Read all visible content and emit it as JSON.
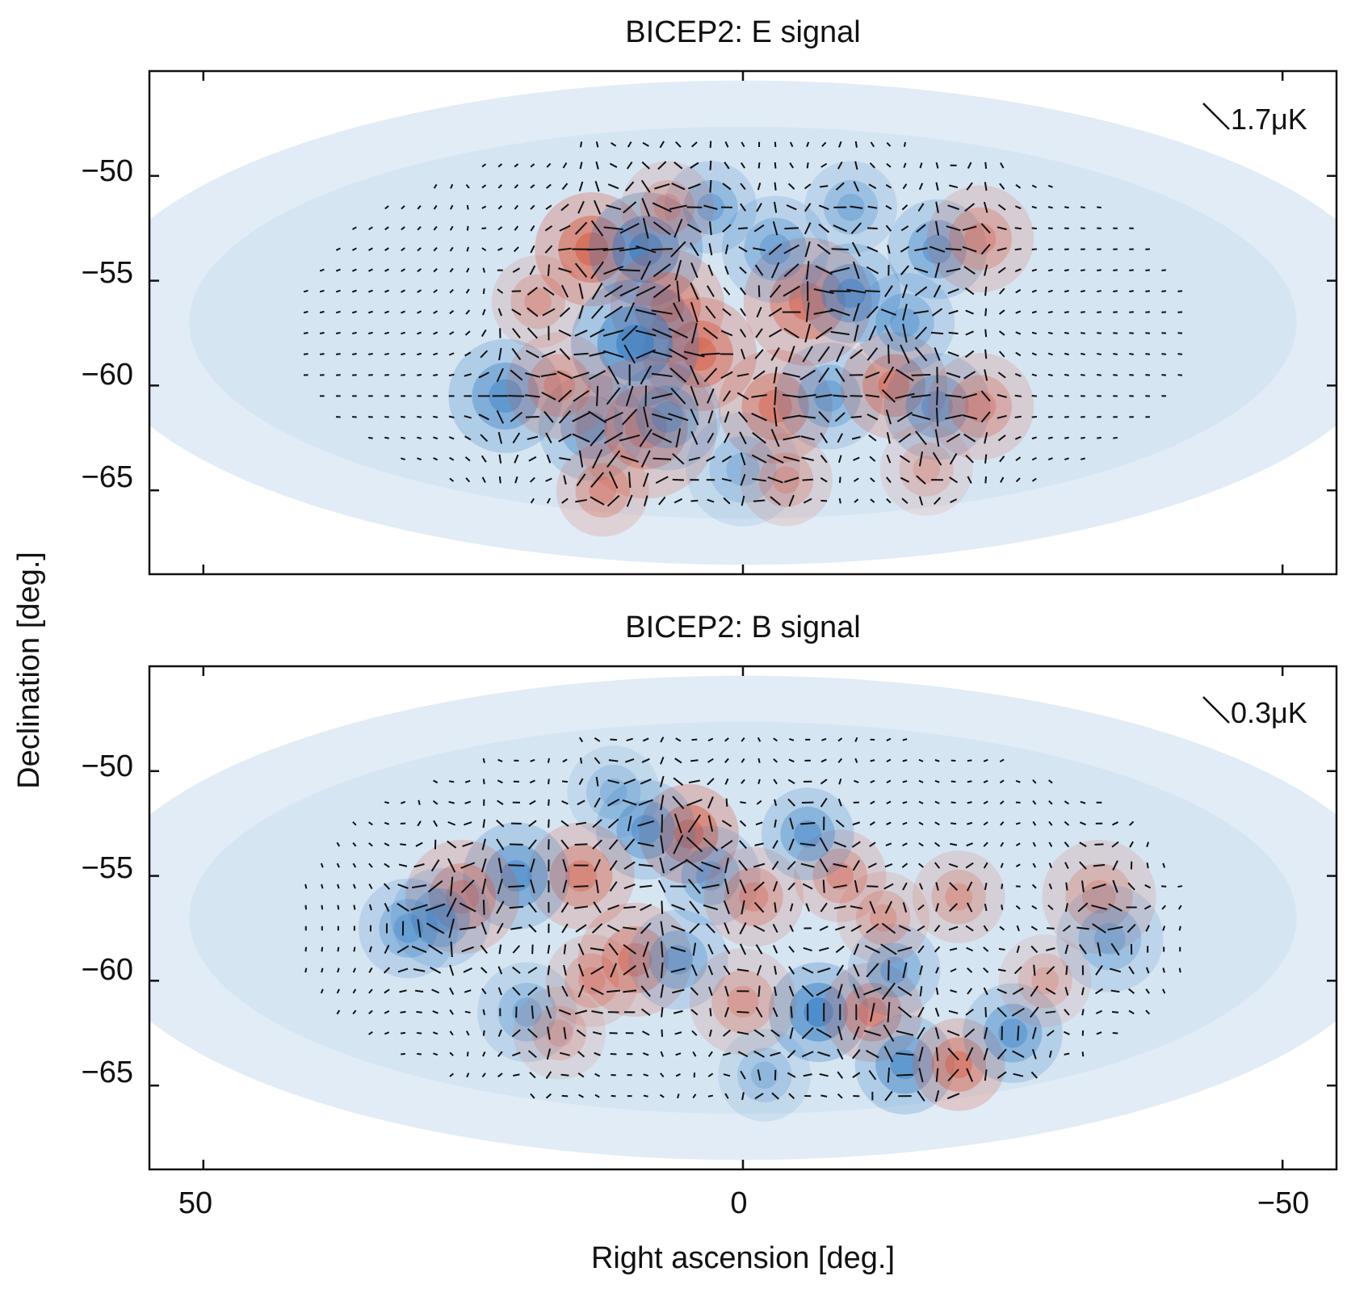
{
  "chart_data": [
    {
      "type": "heatmap",
      "title": "BICEP2: E signal",
      "scale_bar_label": "1.7μK",
      "xlim": [
        55,
        -55
      ],
      "ylim": [
        -69,
        -45
      ],
      "xticks": [
        50,
        0,
        -50
      ],
      "yticks": [
        -50,
        -55,
        -60,
        -65
      ],
      "ytick_labels": [
        "−50",
        "−55",
        "−60",
        "−65"
      ],
      "colormap": {
        "negative": "#2b78c2",
        "zero": "#ffffff",
        "positive": "#d8543a"
      },
      "overlay": "polarization vectors (E-mode, radial/tangential patterns)",
      "hotspots": [
        {
          "ra": 14,
          "dec": -53.5,
          "amp": 1.0,
          "size": 1.6
        },
        {
          "ra": 9,
          "dec": -53.5,
          "amp": -1.0,
          "size": 1.6
        },
        {
          "ra": 7,
          "dec": -56.2,
          "amp": 0.8,
          "size": 1.6
        },
        {
          "ra": 4,
          "dec": -58.5,
          "amp": 0.9,
          "size": 1.6
        },
        {
          "ra": 10,
          "dec": -58.0,
          "amp": -1.0,
          "size": 1.8
        },
        {
          "ra": -6,
          "dec": -56.0,
          "amp": 0.85,
          "size": 1.8
        },
        {
          "ra": -10,
          "dec": -55.6,
          "amp": -0.8,
          "size": 1.4
        },
        {
          "ra": -3,
          "dec": -53.5,
          "amp": -0.6,
          "size": 1.5
        },
        {
          "ra": 22,
          "dec": -60.5,
          "amp": -0.8,
          "size": 1.6
        },
        {
          "ra": 14,
          "dec": -62.0,
          "amp": -0.7,
          "size": 1.5
        },
        {
          "ra": 17,
          "dec": -60.0,
          "amp": 0.6,
          "size": 1.5
        },
        {
          "ra": 9,
          "dec": -62.0,
          "amp": 0.7,
          "size": 2.0
        },
        {
          "ra": 7,
          "dec": -61.5,
          "amp": -0.6,
          "size": 1.5
        },
        {
          "ra": -3,
          "dec": -61.0,
          "amp": 0.8,
          "size": 1.6
        },
        {
          "ra": -8,
          "dec": -60.5,
          "amp": -0.6,
          "size": 1.5
        },
        {
          "ra": -14,
          "dec": -60.0,
          "amp": 0.8,
          "size": 1.5
        },
        {
          "ra": -18,
          "dec": -61.0,
          "amp": -0.7,
          "size": 1.5
        },
        {
          "ra": -22,
          "dec": -61.0,
          "amp": 0.6,
          "size": 1.5
        },
        {
          "ra": -18,
          "dec": -53.5,
          "amp": -0.7,
          "size": 1.4
        },
        {
          "ra": -22,
          "dec": -53.0,
          "amp": 0.6,
          "size": 1.5
        },
        {
          "ra": -15,
          "dec": -57.0,
          "amp": -0.6,
          "size": 1.4
        },
        {
          "ra": 3,
          "dec": -51.5,
          "amp": -0.6,
          "size": 1.3
        },
        {
          "ra": 7,
          "dec": -51.5,
          "amp": 0.5,
          "size": 1.3
        },
        {
          "ra": -10,
          "dec": -51.5,
          "amp": -0.5,
          "size": 1.3
        },
        {
          "ra": 19,
          "dec": -56.0,
          "amp": 0.5,
          "size": 1.3
        },
        {
          "ra": 13,
          "dec": -65.0,
          "amp": 0.6,
          "size": 1.3
        },
        {
          "ra": 0,
          "dec": -64.0,
          "amp": -0.4,
          "size": 1.6
        },
        {
          "ra": -4,
          "dec": -64.5,
          "amp": 0.5,
          "size": 1.3
        },
        {
          "ra": -17,
          "dec": -64.0,
          "amp": 0.4,
          "size": 1.3
        }
      ]
    },
    {
      "type": "heatmap",
      "title": "BICEP2: B signal",
      "scale_bar_label": "0.3μK",
      "xlim": [
        55,
        -55
      ],
      "ylim": [
        -69,
        -45
      ],
      "xticks": [
        50,
        0,
        -50
      ],
      "xtick_labels": [
        "50",
        "0",
        "−50"
      ],
      "yticks": [
        -50,
        -55,
        -60,
        -65
      ],
      "ytick_labels": [
        "−50",
        "−55",
        "−60",
        "−65"
      ],
      "xlabel": "Right ascension [deg.]",
      "ylabel": "Declination [deg.]",
      "colormap": {
        "negative": "#2b78c2",
        "zero": "#ffffff",
        "positive": "#d8543a"
      },
      "overlay": "polarization vectors (B-mode, swirling patterns)",
      "hotspots": [
        {
          "ra": 5,
          "dec": -53.0,
          "amp": 1.0,
          "size": 1.4
        },
        {
          "ra": 9,
          "dec": -52.8,
          "amp": -0.7,
          "size": 1.4
        },
        {
          "ra": 15,
          "dec": -55.0,
          "amp": 0.7,
          "size": 1.5
        },
        {
          "ra": 21,
          "dec": -55.0,
          "amp": -0.8,
          "size": 1.5
        },
        {
          "ra": 26,
          "dec": -56.0,
          "amp": 0.7,
          "size": 1.6
        },
        {
          "ra": 28,
          "dec": -57.0,
          "amp": -0.6,
          "size": 1.4
        },
        {
          "ra": 10,
          "dec": -59.0,
          "amp": 0.7,
          "size": 1.6
        },
        {
          "ra": 6,
          "dec": -59.0,
          "amp": -0.6,
          "size": 1.4
        },
        {
          "ra": 3,
          "dec": -55.0,
          "amp": -0.6,
          "size": 1.4
        },
        {
          "ra": -1,
          "dec": -56.0,
          "amp": 0.6,
          "size": 1.4
        },
        {
          "ra": -7,
          "dec": -61.5,
          "amp": -1.0,
          "size": 1.4
        },
        {
          "ra": -12,
          "dec": -61.5,
          "amp": 0.7,
          "size": 1.4
        },
        {
          "ra": -15,
          "dec": -64.0,
          "amp": -0.8,
          "size": 1.4
        },
        {
          "ra": -20,
          "dec": -64.0,
          "amp": 0.8,
          "size": 1.3
        },
        {
          "ra": -25,
          "dec": -62.5,
          "amp": -0.7,
          "size": 1.4
        },
        {
          "ra": -14,
          "dec": -59.5,
          "amp": -0.6,
          "size": 1.3
        },
        {
          "ra": -9,
          "dec": -55.0,
          "amp": 0.6,
          "size": 1.3
        },
        {
          "ra": -6,
          "dec": -53.0,
          "amp": -0.7,
          "size": 1.3
        },
        {
          "ra": -13,
          "dec": -57.0,
          "amp": 0.5,
          "size": 1.3
        },
        {
          "ra": -20,
          "dec": -56.0,
          "amp": 0.5,
          "size": 1.3
        },
        {
          "ra": -33,
          "dec": -56.0,
          "amp": 0.5,
          "size": 1.6
        },
        {
          "ra": -34,
          "dec": -58.0,
          "amp": -0.5,
          "size": 1.5
        },
        {
          "ra": 20,
          "dec": -61.5,
          "amp": -0.5,
          "size": 1.4
        },
        {
          "ra": 17,
          "dec": -62.5,
          "amp": 0.4,
          "size": 1.3
        },
        {
          "ra": 14,
          "dec": -60.0,
          "amp": 0.5,
          "size": 1.3
        },
        {
          "ra": 0,
          "dec": -61.0,
          "amp": 0.5,
          "size": 1.5
        },
        {
          "ra": 12,
          "dec": -51.0,
          "amp": -0.4,
          "size": 1.3
        },
        {
          "ra": 31,
          "dec": -57.5,
          "amp": -0.6,
          "size": 1.4
        },
        {
          "ra": -2,
          "dec": -64.5,
          "amp": -0.4,
          "size": 1.3
        },
        {
          "ra": -28,
          "dec": -60.0,
          "amp": 0.4,
          "size": 1.3
        }
      ]
    }
  ]
}
